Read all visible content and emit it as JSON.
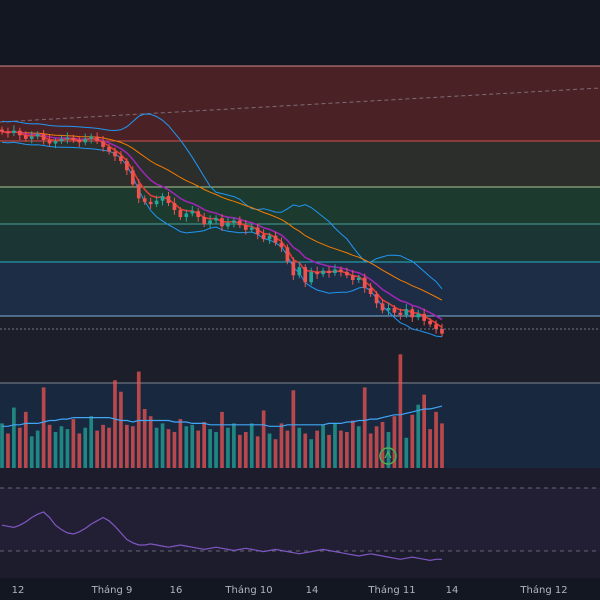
{
  "chart_data": [
    {
      "type": "candlestick",
      "panel": "price",
      "x_ticks": [
        "12",
        "Tháng 9",
        "16",
        "Tháng 10",
        "14",
        "Tháng 11",
        "14",
        "Tháng 12"
      ],
      "closes": [
        63.5,
        63.4,
        63.6,
        63.2,
        62.9,
        63.1,
        63.3,
        62.8,
        62.5,
        62.7,
        62.9,
        63.0,
        62.8,
        62.6,
        62.9,
        63.1,
        62.7,
        62.2,
        61.8,
        61.4,
        61.0,
        60.2,
        59.0,
        57.8,
        57.5,
        57.3,
        57.6,
        58.0,
        57.4,
        56.8,
        56.2,
        56.5,
        56.7,
        56.2,
        55.6,
        55.9,
        56.1,
        55.4,
        55.7,
        55.9,
        55.5,
        55.1,
        55.3,
        54.7,
        54.3,
        54.6,
        54.0,
        53.6,
        52.4,
        51.2,
        51.9,
        50.6,
        51.5,
        51.3,
        51.6,
        51.4,
        51.7,
        51.5,
        51.2,
        50.8,
        51.0,
        50.1,
        49.6,
        48.8,
        48.2,
        48.4,
        48.0,
        47.8,
        48.3,
        47.6,
        47.9,
        47.3,
        47.0,
        46.6,
        46.2
      ],
      "colors": {
        "up": "#26a69a",
        "down": "#ef5350",
        "ema_fast": "#e53935",
        "ema_mid": "#9c27b0",
        "ema_slow": "#f57c00",
        "bollinger": "#2196f3"
      }
    },
    {
      "type": "bar",
      "panel": "volume",
      "values": [
        3.1,
        2.4,
        4.2,
        2.8,
        3.9,
        2.2,
        2.6,
        5.6,
        3.0,
        2.5,
        2.9,
        2.7,
        3.4,
        2.4,
        2.8,
        3.6,
        2.6,
        3.0,
        2.8,
        6.1,
        5.3,
        3.0,
        2.9,
        6.7,
        4.1,
        3.6,
        2.8,
        3.1,
        2.7,
        2.5,
        3.4,
        2.9,
        3.0,
        2.6,
        3.2,
        2.7,
        2.5,
        3.9,
        2.8,
        3.1,
        2.3,
        2.5,
        3.1,
        2.2,
        4.0,
        2.4,
        2.0,
        3.1,
        2.6,
        5.4,
        2.8,
        2.4,
        2.0,
        2.6,
        3.0,
        2.3,
        3.1,
        2.6,
        2.5,
        3.3,
        2.9,
        5.6,
        2.4,
        2.9,
        3.2,
        2.5,
        3.6,
        7.9,
        2.1,
        3.7,
        4.4,
        5.1,
        2.7,
        3.9,
        3.1
      ],
      "ma": [
        2.9,
        2.9,
        3.0,
        3.0,
        3.1,
        3.1,
        3.1,
        3.2,
        3.3,
        3.3,
        3.4,
        3.4,
        3.5,
        3.5,
        3.5,
        3.5,
        3.5,
        3.5,
        3.5,
        3.4,
        3.3,
        3.3,
        3.2,
        3.3,
        3.3,
        3.3,
        3.3,
        3.3,
        3.3,
        3.2,
        3.2,
        3.2,
        3.1,
        3.1,
        3.1,
        3.0,
        3.0,
        3.0,
        3.0,
        3.0,
        3.0,
        3.0,
        3.0,
        3.0,
        3.0,
        2.9,
        2.9,
        2.9,
        3.0,
        3.0,
        3.0,
        3.0,
        3.0,
        3.0,
        3.0,
        3.1,
        3.1,
        3.1,
        3.2,
        3.2,
        3.3,
        3.3,
        3.4,
        3.4,
        3.5,
        3.6,
        3.7,
        3.7,
        3.8,
        3.9,
        4.0,
        4.1,
        4.1,
        4.2,
        4.3
      ]
    },
    {
      "type": "line",
      "panel": "rsi",
      "values": [
        48,
        47,
        46,
        48,
        51,
        55,
        58,
        60,
        55,
        48,
        44,
        41,
        40,
        42,
        45,
        49,
        52,
        55,
        52,
        47,
        41,
        35,
        32,
        30,
        30,
        31,
        30,
        29,
        28,
        29,
        30,
        29,
        28,
        27,
        26,
        27,
        28,
        27,
        26,
        25,
        26,
        27,
        26,
        25,
        24,
        25,
        26,
        25,
        24,
        23,
        22,
        23,
        24,
        25,
        26,
        25,
        24,
        23,
        22,
        21,
        20,
        21,
        22,
        21,
        20,
        19,
        18,
        17,
        18,
        19,
        18,
        17,
        16,
        17,
        17
      ]
    }
  ]
}
